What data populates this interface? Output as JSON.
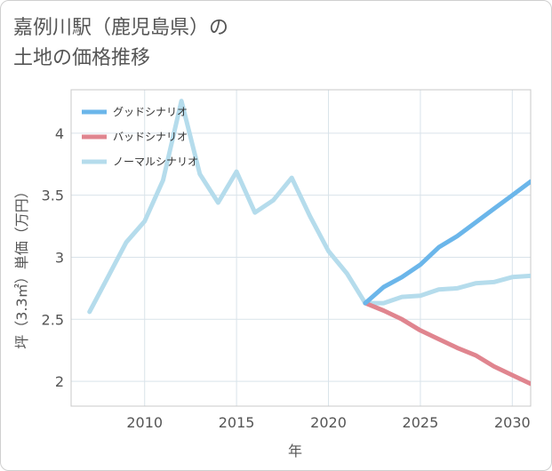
{
  "title_line1": "嘉例川駅（鹿児島県）の",
  "title_line2": "土地の価格推移",
  "chart_data": {
    "type": "line",
    "xlabel": "年",
    "ylabel": "坪（3.3㎡）単価（万円）",
    "xlim": [
      2006,
      2031
    ],
    "ylim": [
      1.8,
      4.35
    ],
    "x_ticks": [
      2010,
      2015,
      2020,
      2025,
      2030
    ],
    "y_ticks": [
      2,
      2.5,
      3,
      3.5,
      4
    ],
    "grid": true,
    "legend_position": "top-left",
    "series": [
      {
        "name": "グッドシナリオ",
        "color": "#6bb6ea",
        "x": [
          2022,
          2023,
          2024,
          2025,
          2026,
          2027,
          2028,
          2029,
          2030,
          2031
        ],
        "y": [
          2.63,
          2.76,
          2.84,
          2.94,
          3.08,
          3.17,
          3.28,
          3.39,
          3.5,
          3.61
        ]
      },
      {
        "name": "バッドシナリオ",
        "color": "#e0858f",
        "x": [
          2022,
          2023,
          2024,
          2025,
          2026,
          2027,
          2028,
          2029,
          2030,
          2031
        ],
        "y": [
          2.63,
          2.57,
          2.5,
          2.41,
          2.34,
          2.27,
          2.21,
          2.12,
          2.05,
          1.98
        ]
      },
      {
        "name": "ノーマルシナリオ",
        "color": "#b5dcec",
        "x": [
          2007,
          2008,
          2009,
          2010,
          2011,
          2012,
          2013,
          2014,
          2015,
          2016,
          2017,
          2018,
          2019,
          2020,
          2021,
          2022,
          2023,
          2024,
          2025,
          2026,
          2027,
          2028,
          2029,
          2030,
          2031
        ],
        "y": [
          2.56,
          2.84,
          3.12,
          3.29,
          3.62,
          4.26,
          3.67,
          3.44,
          3.69,
          3.36,
          3.46,
          3.64,
          3.33,
          3.05,
          2.87,
          2.63,
          2.63,
          2.68,
          2.69,
          2.74,
          2.75,
          2.79,
          2.8,
          2.84,
          2.85
        ]
      }
    ]
  }
}
